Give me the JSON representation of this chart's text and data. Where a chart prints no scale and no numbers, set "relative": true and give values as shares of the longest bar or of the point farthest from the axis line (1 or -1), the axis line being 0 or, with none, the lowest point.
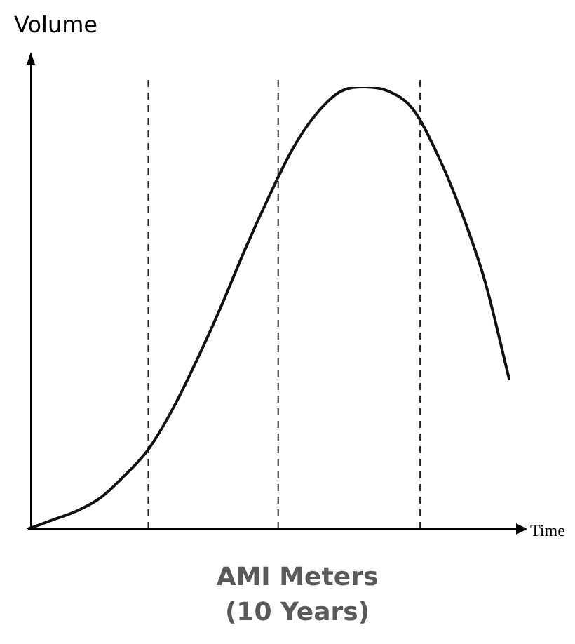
{
  "chart_data": {
    "type": "line",
    "relative": true,
    "xlabel": "Time",
    "ylabel": "Volume",
    "annotations": [
      "AMI Meters (10 Years)"
    ],
    "categories": [
      null,
      null,
      null,
      null,
      null,
      null,
      null,
      null,
      null,
      null,
      null,
      null,
      null,
      null,
      null,
      null,
      null,
      null,
      null,
      null,
      null
    ],
    "series": [
      {
        "color": "#111111",
        "values": [
          0,
          0.02,
          0.04,
          0.07,
          0.12,
          0.18,
          0.27,
          0.38,
          0.5,
          0.63,
          0.75,
          0.86,
          0.94,
          0.99,
          1,
          0.99,
          0.95,
          0.85,
          0.72,
          0.56,
          0.34
        ]
      }
    ],
    "legend": false,
    "marker": "none",
    "line_style": "solid"
  }
}
